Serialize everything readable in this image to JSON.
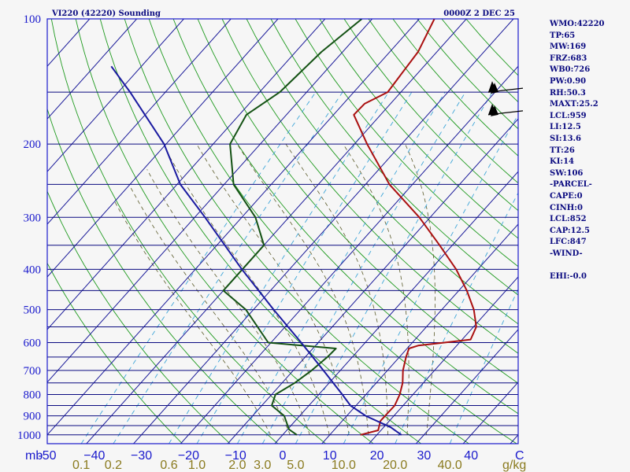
{
  "header": {
    "station": "VI220 (42220) Sounding",
    "time": "0000Z  2 DEC 25"
  },
  "indices": [
    {
      "label": "WMO",
      "value": "42220"
    },
    {
      "label": "TP",
      "value": "65"
    },
    {
      "label": "MW",
      "value": "169"
    },
    {
      "label": "FRZ",
      "value": "683"
    },
    {
      "label": "WB0",
      "value": "726"
    },
    {
      "label": "PW",
      "value": "0.90"
    },
    {
      "label": "RH",
      "value": "50.3"
    },
    {
      "label": "MAXT",
      "value": "25.2"
    },
    {
      "label": "LCL",
      "value": "959"
    },
    {
      "label": "LI",
      "value": "12.5"
    },
    {
      "label": "SI",
      "value": "13.6"
    },
    {
      "label": "TT",
      "value": "26"
    },
    {
      "label": "KI",
      "value": "14"
    },
    {
      "label": "SW",
      "value": "106"
    },
    {
      "label": "-PARCEL-",
      "value": ""
    },
    {
      "label": "CAPE",
      "value": "0"
    },
    {
      "label": "CINH",
      "value": "0"
    },
    {
      "label": "LCL",
      "value": "852"
    },
    {
      "label": "CAP",
      "value": "12.5"
    },
    {
      "label": "LFC",
      "value": "847"
    },
    {
      "label": "-WIND-",
      "value": ""
    },
    {
      "label": "",
      "value": ""
    },
    {
      "label": "EHI",
      "value": "-0.0"
    }
  ],
  "chart_data": {
    "type": "line",
    "title": "VI220 (42220) Sounding",
    "subtitle": "0000Z  2 DEC 25",
    "xlabel": "C",
    "pressure_unit": "mb",
    "mixing_ratio_unit": "g/kg",
    "pressure_ticks": [
      100,
      200,
      300,
      400,
      500,
      600,
      700,
      800,
      900,
      1000
    ],
    "pressure_tick_labels": [
      "100",
      "200",
      "300",
      "400",
      "500",
      "600",
      "700",
      "800",
      "900",
      "1000"
    ],
    "isobars": [
      100,
      150,
      200,
      250,
      300,
      350,
      400,
      450,
      500,
      550,
      600,
      650,
      700,
      750,
      800,
      850,
      900,
      950,
      1000
    ],
    "temperature_ticks": [
      -50,
      -40,
      -30,
      -20,
      -10,
      0,
      10,
      20,
      30,
      40
    ],
    "temperature_tick_labels": [
      "-50",
      "−40",
      "−30",
      "−20",
      "−10",
      "0",
      "10",
      "20",
      "30",
      "40"
    ],
    "mixing_ratio_ticks": [
      0.1,
      0.2,
      0.6,
      1.0,
      2.0,
      3.0,
      5.0,
      10.0,
      20.0,
      40.0
    ],
    "mixing_ratio_tick_labels": [
      "0.1",
      "0.2",
      "0.6",
      "1.0",
      "2.0",
      "3.0",
      "5.0",
      "10.0",
      "20.0",
      "40.0"
    ],
    "temperature_range": [
      -50,
      50
    ],
    "pressure_range": [
      1050,
      100
    ],
    "skew_c_per_decade": 79,
    "series": [
      {
        "name": "Temperature",
        "color": "#aa1010",
        "points": [
          [
            1000,
            16.5
          ],
          [
            975,
            19.4
          ],
          [
            925,
            18.1
          ],
          [
            850,
            18.2
          ],
          [
            800,
            17.2
          ],
          [
            750,
            15.6
          ],
          [
            700,
            13.3
          ],
          [
            650,
            11.4
          ],
          [
            620,
            10.4
          ],
          [
            610,
            11.8
          ],
          [
            600,
            16.8
          ],
          [
            590,
            21.8
          ],
          [
            550,
            20.6
          ],
          [
            500,
            16.8
          ],
          [
            450,
            11.7
          ],
          [
            400,
            5.4
          ],
          [
            350,
            -2.7
          ],
          [
            300,
            -12.3
          ],
          [
            250,
            -24.9
          ],
          [
            200,
            -37.3
          ],
          [
            170,
            -45.7
          ],
          [
            160,
            -45.5
          ],
          [
            150,
            -42.8
          ],
          [
            120,
            -44.0
          ],
          [
            100,
            -46.8
          ]
        ]
      },
      {
        "name": "Dew point",
        "color": "#145214",
        "points": [
          [
            1000,
            3.0
          ],
          [
            970,
            0.3
          ],
          [
            900,
            -3.3
          ],
          [
            850,
            -7.9
          ],
          [
            800,
            -9.2
          ],
          [
            750,
            -7.3
          ],
          [
            700,
            -6.1
          ],
          [
            650,
            -5.3
          ],
          [
            620,
            -5.1
          ],
          [
            610,
            -12.8
          ],
          [
            600,
            -20.6
          ],
          [
            500,
            -31.6
          ],
          [
            450,
            -40.0
          ],
          [
            350,
            -40.0
          ],
          [
            300,
            -47.1
          ],
          [
            250,
            -58.0
          ],
          [
            200,
            -66.4
          ],
          [
            170,
            -68.5
          ],
          [
            150,
            -65.7
          ],
          [
            120,
            -64.5
          ],
          [
            100,
            -62.2
          ]
        ]
      },
      {
        "name": "Parcel",
        "color": "#1a1aa0",
        "points": [
          [
            1000,
            25.2
          ],
          [
            959,
            21.5
          ],
          [
            900,
            14.0
          ],
          [
            850,
            8.8
          ],
          [
            800,
            5.0
          ],
          [
            700,
            -3.6
          ],
          [
            600,
            -13.6
          ],
          [
            500,
            -25.7
          ],
          [
            400,
            -40.1
          ],
          [
            300,
            -57.8
          ],
          [
            250,
            -69.3
          ],
          [
            200,
            -80.4
          ],
          [
            150,
            -97.5
          ],
          [
            130,
            -106.4
          ]
        ]
      }
    ],
    "background_lines": {
      "isotherms": [
        -160,
        -150,
        -140,
        -130,
        -120,
        -110,
        -100,
        -90,
        -80,
        -70,
        -60,
        -50,
        -40,
        -30,
        -20,
        -10,
        0,
        10,
        20,
        30,
        40,
        50
      ],
      "dry_adiabats_theta_k": [
        250,
        260,
        270,
        280,
        290,
        300,
        310,
        320,
        330,
        340,
        350,
        360,
        370,
        380,
        390,
        400,
        410,
        420,
        430,
        440,
        450
      ],
      "moist_adiabats_tw_c": [
        0,
        4,
        8,
        12,
        16,
        20,
        24,
        28,
        32
      ],
      "mixing_ratio_lines_gkg": [
        0.1,
        0.2,
        0.6,
        1.0,
        2.0,
        3.0,
        5.0,
        10.0,
        20.0,
        40.0
      ]
    },
    "wind_barbs": [
      {
        "pressure": 150,
        "speed_kt": 75
      },
      {
        "pressure": 170,
        "speed_kt": 60
      }
    ],
    "colors": {
      "isobar": "#0a0a80",
      "isotherm": "#1a1a99",
      "dry_adiabat": "#1f9a1f",
      "moist_adiabat": "#5a5a2a",
      "mixing_ratio": "#3fa6d8",
      "border": "#1a1acc"
    }
  }
}
